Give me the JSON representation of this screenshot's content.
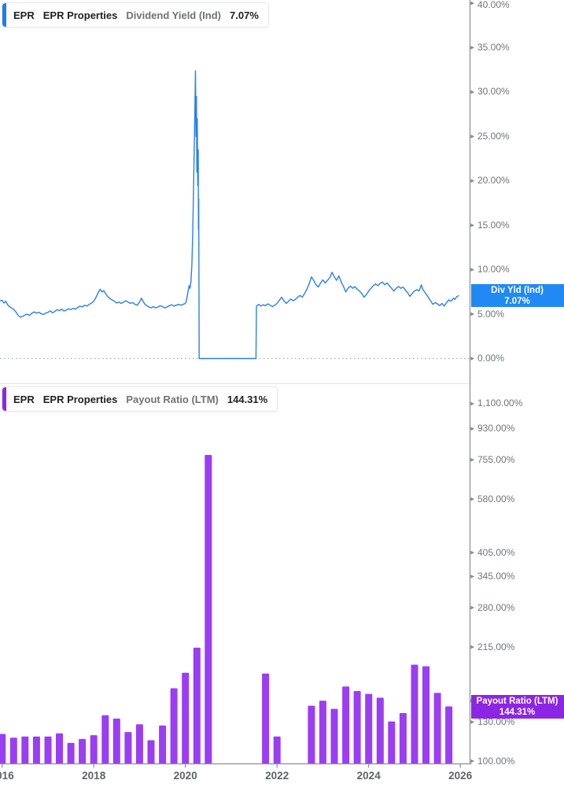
{
  "colors": {
    "line_blue": "#2a7fee",
    "blue_label_bg": "#2089f4",
    "blue_chip": "#1d7df0",
    "bar_purple": "#9b3df2",
    "purple_label_bg": "#8c26e4",
    "purple_chip": "#8c26e4",
    "axis_line": "#8a8f94",
    "tick_arrow": "#85898d",
    "axis_text": "#70757a",
    "year_text": "#5f6368",
    "zero_dotted": "#9aa0a6",
    "panel_divider": "#e4e6e8"
  },
  "panels": {
    "dividend_yield": {
      "legend": {
        "ticker": "EPR",
        "company": "EPR Properties",
        "metric": "Dividend Yield (Ind)",
        "value": "7.07%"
      },
      "price_label": {
        "title": "Div Yld (Ind)",
        "value": "7.07%"
      }
    },
    "payout_ratio": {
      "legend": {
        "ticker": "EPR",
        "company": "EPR Properties",
        "metric": "Payout Ratio (LTM)",
        "value": "144.31%"
      },
      "price_label": {
        "title": "Payout Ratio (LTM)",
        "value": "144.31%"
      }
    }
  },
  "x_axis": {
    "ticks": [
      {
        "value": 2016,
        "label": "2016"
      },
      {
        "value": 2018,
        "label": "2018"
      },
      {
        "value": 2020,
        "label": "2020"
      },
      {
        "value": 2022,
        "label": "2022"
      },
      {
        "value": 2024,
        "label": "2024"
      },
      {
        "value": 2026,
        "label": "2026"
      }
    ]
  },
  "chart_data": [
    {
      "type": "line",
      "panel": "top",
      "ticker": "EPR",
      "name": "Dividend Yield (Ind)",
      "unit": "%",
      "current_value": 7.07,
      "yscale": "linear",
      "ylim": [
        0,
        41.5
      ],
      "xlim": [
        2015.95,
        2026.2
      ],
      "grid": false,
      "zero_line": "dotted",
      "yticks": [
        {
          "value": 40,
          "label": "40.00%"
        },
        {
          "value": 35,
          "label": "35.00%"
        },
        {
          "value": 30,
          "label": "30.00%"
        },
        {
          "value": 25,
          "label": "25.00%"
        },
        {
          "value": 20,
          "label": "20.00%"
        },
        {
          "value": 15,
          "label": "15.00%"
        },
        {
          "value": 10,
          "label": "10.00%"
        },
        {
          "value": 5,
          "label": "5.00%"
        },
        {
          "value": 0,
          "label": "0.00%"
        }
      ],
      "points": [
        [
          2015.96,
          6.5
        ],
        [
          2016.0,
          6.55
        ],
        [
          2016.04,
          6.25
        ],
        [
          2016.08,
          6.45
        ],
        [
          2016.12,
          6.05
        ],
        [
          2016.16,
          5.85
        ],
        [
          2016.2,
          5.7
        ],
        [
          2016.25,
          5.55
        ],
        [
          2016.3,
          5.25
        ],
        [
          2016.35,
          4.85
        ],
        [
          2016.4,
          4.65
        ],
        [
          2016.45,
          4.75
        ],
        [
          2016.5,
          4.9
        ],
        [
          2016.55,
          5.0
        ],
        [
          2016.6,
          4.85
        ],
        [
          2016.65,
          5.1
        ],
        [
          2016.7,
          5.25
        ],
        [
          2016.75,
          5.1
        ],
        [
          2016.8,
          5.2
        ],
        [
          2016.85,
          5.05
        ],
        [
          2016.9,
          4.95
        ],
        [
          2016.95,
          5.1
        ],
        [
          2017.0,
          5.2
        ],
        [
          2017.05,
          5.35
        ],
        [
          2017.1,
          5.15
        ],
        [
          2017.15,
          5.3
        ],
        [
          2017.2,
          5.5
        ],
        [
          2017.25,
          5.4
        ],
        [
          2017.3,
          5.55
        ],
        [
          2017.35,
          5.35
        ],
        [
          2017.4,
          5.45
        ],
        [
          2017.45,
          5.6
        ],
        [
          2017.5,
          5.5
        ],
        [
          2017.55,
          5.65
        ],
        [
          2017.6,
          5.55
        ],
        [
          2017.65,
          5.75
        ],
        [
          2017.7,
          5.9
        ],
        [
          2017.75,
          5.8
        ],
        [
          2017.8,
          6.0
        ],
        [
          2017.85,
          5.9
        ],
        [
          2017.9,
          6.1
        ],
        [
          2017.95,
          6.25
        ],
        [
          2018.0,
          6.45
        ],
        [
          2018.05,
          6.9
        ],
        [
          2018.1,
          7.45
        ],
        [
          2018.14,
          7.8
        ],
        [
          2018.18,
          7.5
        ],
        [
          2018.22,
          7.65
        ],
        [
          2018.26,
          7.3
        ],
        [
          2018.3,
          7.0
        ],
        [
          2018.35,
          6.75
        ],
        [
          2018.4,
          6.6
        ],
        [
          2018.45,
          6.45
        ],
        [
          2018.5,
          6.25
        ],
        [
          2018.55,
          6.35
        ],
        [
          2018.6,
          6.2
        ],
        [
          2018.65,
          6.35
        ],
        [
          2018.7,
          6.5
        ],
        [
          2018.75,
          6.35
        ],
        [
          2018.8,
          6.2
        ],
        [
          2018.85,
          6.3
        ],
        [
          2018.9,
          6.1
        ],
        [
          2018.95,
          6.0
        ],
        [
          2019.0,
          6.35
        ],
        [
          2019.04,
          6.8
        ],
        [
          2019.08,
          6.4
        ],
        [
          2019.12,
          6.1
        ],
        [
          2019.16,
          5.95
        ],
        [
          2019.2,
          5.8
        ],
        [
          2019.25,
          5.7
        ],
        [
          2019.3,
          5.85
        ],
        [
          2019.35,
          5.7
        ],
        [
          2019.4,
          5.8
        ],
        [
          2019.45,
          5.95
        ],
        [
          2019.5,
          5.85
        ],
        [
          2019.55,
          5.7
        ],
        [
          2019.6,
          5.8
        ],
        [
          2019.65,
          5.95
        ],
        [
          2019.7,
          6.05
        ],
        [
          2019.75,
          5.9
        ],
        [
          2019.8,
          6.0
        ],
        [
          2019.85,
          6.1
        ],
        [
          2019.9,
          6.0
        ],
        [
          2019.95,
          6.1
        ],
        [
          2020.0,
          6.2
        ],
        [
          2020.02,
          6.5
        ],
        [
          2020.04,
          7.0
        ],
        [
          2020.06,
          7.6
        ],
        [
          2020.08,
          8.2
        ],
        [
          2020.1,
          7.9
        ],
        [
          2020.12,
          8.6
        ],
        [
          2020.14,
          10.5
        ],
        [
          2020.16,
          14.0
        ],
        [
          2020.18,
          20.0
        ],
        [
          2020.2,
          26.0
        ],
        [
          2020.22,
          32.4
        ],
        [
          2020.23,
          25.0
        ],
        [
          2020.24,
          29.5
        ],
        [
          2020.25,
          21.0
        ],
        [
          2020.26,
          27.0
        ],
        [
          2020.27,
          19.5
        ],
        [
          2020.28,
          23.5
        ],
        [
          2020.285,
          14.5
        ],
        [
          2020.29,
          18.0
        ],
        [
          2020.3,
          0.0
        ],
        [
          2021.54,
          0.0
        ],
        [
          2021.55,
          5.9
        ],
        [
          2021.6,
          6.1
        ],
        [
          2021.65,
          5.9
        ],
        [
          2021.7,
          6.05
        ],
        [
          2021.75,
          5.95
        ],
        [
          2021.8,
          6.15
        ],
        [
          2021.85,
          6.0
        ],
        [
          2021.9,
          5.85
        ],
        [
          2021.95,
          6.0
        ],
        [
          2022.0,
          6.2
        ],
        [
          2022.05,
          6.55
        ],
        [
          2022.1,
          6.9
        ],
        [
          2022.15,
          6.5
        ],
        [
          2022.2,
          6.2
        ],
        [
          2022.25,
          6.45
        ],
        [
          2022.3,
          6.7
        ],
        [
          2022.35,
          6.5
        ],
        [
          2022.4,
          6.65
        ],
        [
          2022.45,
          6.9
        ],
        [
          2022.5,
          7.1
        ],
        [
          2022.55,
          6.9
        ],
        [
          2022.6,
          7.3
        ],
        [
          2022.65,
          7.8
        ],
        [
          2022.7,
          8.4
        ],
        [
          2022.75,
          9.2
        ],
        [
          2022.8,
          8.8
        ],
        [
          2022.85,
          8.3
        ],
        [
          2022.9,
          8.05
        ],
        [
          2022.95,
          8.5
        ],
        [
          2023.0,
          8.85
        ],
        [
          2023.05,
          8.5
        ],
        [
          2023.1,
          8.8
        ],
        [
          2023.15,
          9.1
        ],
        [
          2023.2,
          9.7
        ],
        [
          2023.25,
          9.2
        ],
        [
          2023.3,
          8.8
        ],
        [
          2023.35,
          9.3
        ],
        [
          2023.4,
          8.6
        ],
        [
          2023.45,
          8.1
        ],
        [
          2023.5,
          7.5
        ],
        [
          2023.55,
          7.9
        ],
        [
          2023.6,
          8.15
        ],
        [
          2023.65,
          7.9
        ],
        [
          2023.7,
          8.1
        ],
        [
          2023.75,
          7.8
        ],
        [
          2023.8,
          7.6
        ],
        [
          2023.85,
          7.3
        ],
        [
          2023.9,
          6.9
        ],
        [
          2023.95,
          7.2
        ],
        [
          2024.0,
          7.6
        ],
        [
          2024.05,
          7.9
        ],
        [
          2024.1,
          8.2
        ],
        [
          2024.15,
          8.4
        ],
        [
          2024.2,
          8.2
        ],
        [
          2024.25,
          8.45
        ],
        [
          2024.3,
          8.6
        ],
        [
          2024.35,
          8.3
        ],
        [
          2024.4,
          8.5
        ],
        [
          2024.45,
          8.2
        ],
        [
          2024.5,
          7.9
        ],
        [
          2024.55,
          7.6
        ],
        [
          2024.6,
          7.9
        ],
        [
          2024.65,
          8.1
        ],
        [
          2024.7,
          7.9
        ],
        [
          2024.75,
          8.05
        ],
        [
          2024.8,
          7.7
        ],
        [
          2024.85,
          7.4
        ],
        [
          2024.9,
          7.0
        ],
        [
          2024.95,
          7.3
        ],
        [
          2025.0,
          7.6
        ],
        [
          2025.05,
          7.75
        ],
        [
          2025.1,
          7.6
        ],
        [
          2025.15,
          8.3
        ],
        [
          2025.18,
          7.8
        ],
        [
          2025.22,
          7.5
        ],
        [
          2025.26,
          7.2
        ],
        [
          2025.3,
          6.9
        ],
        [
          2025.35,
          6.5
        ],
        [
          2025.4,
          6.1
        ],
        [
          2025.45,
          6.3
        ],
        [
          2025.5,
          6.15
        ],
        [
          2025.55,
          5.95
        ],
        [
          2025.6,
          6.2
        ],
        [
          2025.65,
          5.9
        ],
        [
          2025.7,
          6.3
        ],
        [
          2025.75,
          6.6
        ],
        [
          2025.8,
          6.45
        ],
        [
          2025.85,
          6.8
        ],
        [
          2025.88,
          6.65
        ],
        [
          2025.92,
          6.95
        ],
        [
          2025.96,
          7.07
        ]
      ]
    },
    {
      "type": "bar",
      "panel": "bottom",
      "ticker": "EPR",
      "name": "Payout Ratio (LTM)",
      "unit": "%",
      "current_value": 144.31,
      "yscale": "log",
      "ylim": [
        97,
        1255
      ],
      "xlim": [
        2015.95,
        2026.2
      ],
      "grid": false,
      "yticks": [
        {
          "value": 1100,
          "label": "1,100.00%"
        },
        {
          "value": 930,
          "label": "930.00%"
        },
        {
          "value": 755,
          "label": "755.00%"
        },
        {
          "value": 580,
          "label": "580.00%"
        },
        {
          "value": 405,
          "label": "405.00%"
        },
        {
          "value": 345,
          "label": "345.00%"
        },
        {
          "value": 280,
          "label": "280.00%"
        },
        {
          "value": 215,
          "label": "215.00%"
        },
        {
          "value": 150,
          "label": "150.00%"
        },
        {
          "value": 130,
          "label": "130.00%"
        },
        {
          "value": 100,
          "label": "100.00%"
        }
      ],
      "x_start": 2016.0,
      "x_step": 0.25,
      "values": [
        120,
        117,
        118,
        118,
        118,
        120.5,
        113,
        116,
        119,
        136,
        133,
        121.5,
        128,
        115,
        127,
        163,
        181,
        214,
        780,
        null,
        null,
        null,
        null,
        180,
        118,
        null,
        null,
        145,
        150,
        142,
        165,
        160,
        157,
        153,
        130.5,
        138,
        191,
        189,
        158,
        144.31
      ]
    }
  ]
}
